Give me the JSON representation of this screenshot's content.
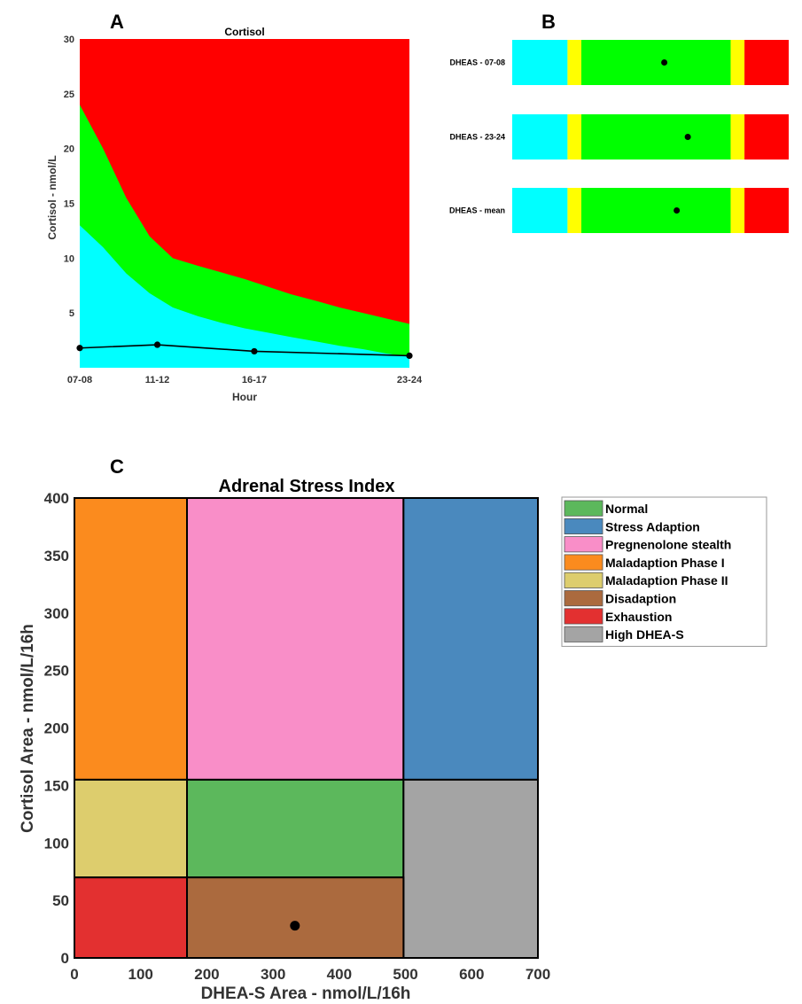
{
  "panels": {
    "a": "A",
    "b": "B",
    "c": "C"
  },
  "chart_data": [
    {
      "type": "area",
      "panel": "A",
      "title": "Cortisol",
      "xlabel": "Hour",
      "ylabel": "Cortisol - nmol/L",
      "categories": [
        "07-08",
        "11-12",
        "16-17",
        "23-24"
      ],
      "ylim": [
        0,
        30
      ],
      "yticks": [
        5,
        10,
        15,
        20,
        25,
        30
      ],
      "bands": [
        {
          "color": "#00ffff",
          "x": [
            0,
            1.2,
            2.4,
            3.6,
            4.8,
            6.1,
            7.3,
            8.5,
            9.7,
            10.9,
            12.2,
            13.4,
            14.6,
            15.8,
            17.0
          ],
          "upper": [
            13,
            11,
            8.6,
            6.8,
            5.5,
            4.7,
            4.1,
            3.6,
            3.2,
            2.8,
            2.4,
            2.0,
            1.7,
            1.3,
            1.0
          ]
        },
        {
          "color": "#00ff00",
          "x": [
            0,
            1.2,
            2.4,
            3.6,
            4.8,
            6.1,
            7.3,
            8.5,
            9.7,
            10.9,
            12.2,
            13.4,
            14.6,
            15.8,
            17.0
          ],
          "upper": [
            24,
            20,
            15.5,
            12,
            10,
            9.3,
            8.7,
            8.1,
            7.4,
            6.7,
            6.1,
            5.5,
            5.0,
            4.5,
            4.0
          ]
        },
        {
          "color": "#ff0000",
          "upper_const": 30
        }
      ],
      "series": [
        {
          "x": [
            0,
            4,
            9,
            17
          ],
          "values": [
            1.8,
            2.1,
            1.5,
            1.1
          ],
          "color": "#000000"
        }
      ]
    },
    {
      "type": "bar",
      "panel": "B",
      "categories": [
        "DHEAS - 07-08",
        "DHEAS - 23-24",
        "DHEAS - mean"
      ],
      "segments": [
        {
          "color": "#00ffff",
          "from": 0,
          "to": 0.2
        },
        {
          "color": "#ffff00",
          "from": 0.2,
          "to": 0.25
        },
        {
          "color": "#00ff00",
          "from": 0.25,
          "to": 0.79
        },
        {
          "color": "#ffff00",
          "from": 0.79,
          "to": 0.84
        },
        {
          "color": "#ff0000",
          "from": 0.84,
          "to": 1.0
        }
      ],
      "values": [
        0.55,
        0.635,
        0.595
      ]
    },
    {
      "type": "scatter",
      "panel": "C",
      "title": "Adrenal Stress Index",
      "xlabel": "DHEA-S Area - nmol/L/16h",
      "ylabel": "Cortisol Area - nmol/L/16h",
      "xlim": [
        0,
        700
      ],
      "ylim": [
        0,
        400
      ],
      "xticks": [
        0,
        100,
        200,
        300,
        400,
        500,
        600,
        700
      ],
      "yticks": [
        0,
        50,
        100,
        150,
        200,
        250,
        300,
        350,
        400
      ],
      "regions": [
        {
          "name": "Maladaption Phase I",
          "x": [
            0,
            170
          ],
          "y": [
            155,
            400
          ],
          "color": "#fb8b1e"
        },
        {
          "name": "Pregnenolone stealth",
          "x": [
            170,
            497
          ],
          "y": [
            155,
            400
          ],
          "color": "#f98ec8"
        },
        {
          "name": "Stress Adaption",
          "x": [
            497,
            700
          ],
          "y": [
            155,
            400
          ],
          "color": "#4a89be"
        },
        {
          "name": "Maladaption Phase II",
          "x": [
            0,
            170
          ],
          "y": [
            70,
            155
          ],
          "color": "#ddcd6d"
        },
        {
          "name": "Normal",
          "x": [
            170,
            497
          ],
          "y": [
            70,
            155
          ],
          "color": "#5cb85c"
        },
        {
          "name": "High DHEA-S",
          "x": [
            497,
            700
          ],
          "y": [
            0,
            155
          ],
          "color": "#a4a4a4"
        },
        {
          "name": "Exhaustion",
          "x": [
            0,
            170
          ],
          "y": [
            0,
            70
          ],
          "color": "#e33030"
        },
        {
          "name": "Disadaption",
          "x": [
            170,
            497
          ],
          "y": [
            0,
            70
          ],
          "color": "#ab6a3e"
        }
      ],
      "points": [
        {
          "x": 333,
          "y": 28
        }
      ],
      "legend": {
        "position": "right",
        "entries": [
          {
            "label": "Normal",
            "color": "#5cb85c"
          },
          {
            "label": "Stress Adaption",
            "color": "#4a89be"
          },
          {
            "label": "Pregnenolone stealth",
            "color": "#f98ec8"
          },
          {
            "label": "Maladaption Phase I",
            "color": "#fb8b1e"
          },
          {
            "label": "Maladaption Phase II",
            "color": "#ddcd6d"
          },
          {
            "label": "Disadaption",
            "color": "#ab6a3e"
          },
          {
            "label": "Exhaustion",
            "color": "#e33030"
          },
          {
            "label": "High DHEA-S",
            "color": "#a4a4a4"
          }
        ]
      }
    }
  ]
}
